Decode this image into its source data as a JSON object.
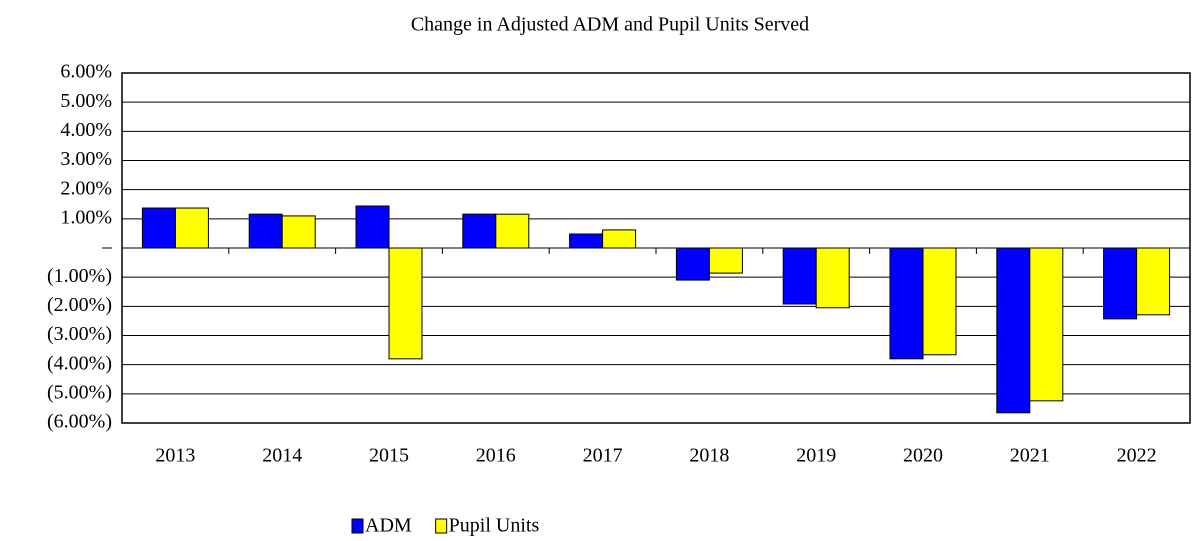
{
  "chart_data": {
    "type": "bar",
    "title": "Change in Adjusted ADM and Pupil Units Served",
    "categories": [
      "2013",
      "2014",
      "2015",
      "2016",
      "2017",
      "2018",
      "2019",
      "2020",
      "2021",
      "2022"
    ],
    "series": [
      {
        "name": "ADM",
        "color": "#0000ff",
        "values": [
          1.37,
          1.16,
          1.44,
          1.16,
          0.48,
          -1.1,
          -1.92,
          -3.8,
          -5.65,
          -2.43
        ]
      },
      {
        "name": "Pupil Units",
        "color": "#ffff00",
        "values": [
          1.37,
          1.1,
          -3.8,
          1.16,
          0.62,
          -0.86,
          -2.05,
          -3.66,
          -5.24,
          -2.29
        ]
      }
    ],
    "ylim": [
      -6,
      6
    ],
    "yticks": [
      {
        "value": -6,
        "label": "(6.00%)"
      },
      {
        "value": -5,
        "label": "(5.00%)"
      },
      {
        "value": -4,
        "label": "(4.00%)"
      },
      {
        "value": -3,
        "label": "(3.00%)"
      },
      {
        "value": -2,
        "label": "(2.00%)"
      },
      {
        "value": -1,
        "label": "(1.00%)"
      },
      {
        "value": 0,
        "label": "–"
      },
      {
        "value": 1,
        "label": "1.00%"
      },
      {
        "value": 2,
        "label": "2.00%"
      },
      {
        "value": 3,
        "label": "3.00%"
      },
      {
        "value": 4,
        "label": "4.00%"
      },
      {
        "value": 5,
        "label": "5.00%"
      },
      {
        "value": 6,
        "label": "6.00%"
      }
    ],
    "grid": true,
    "legend": "bottom"
  }
}
